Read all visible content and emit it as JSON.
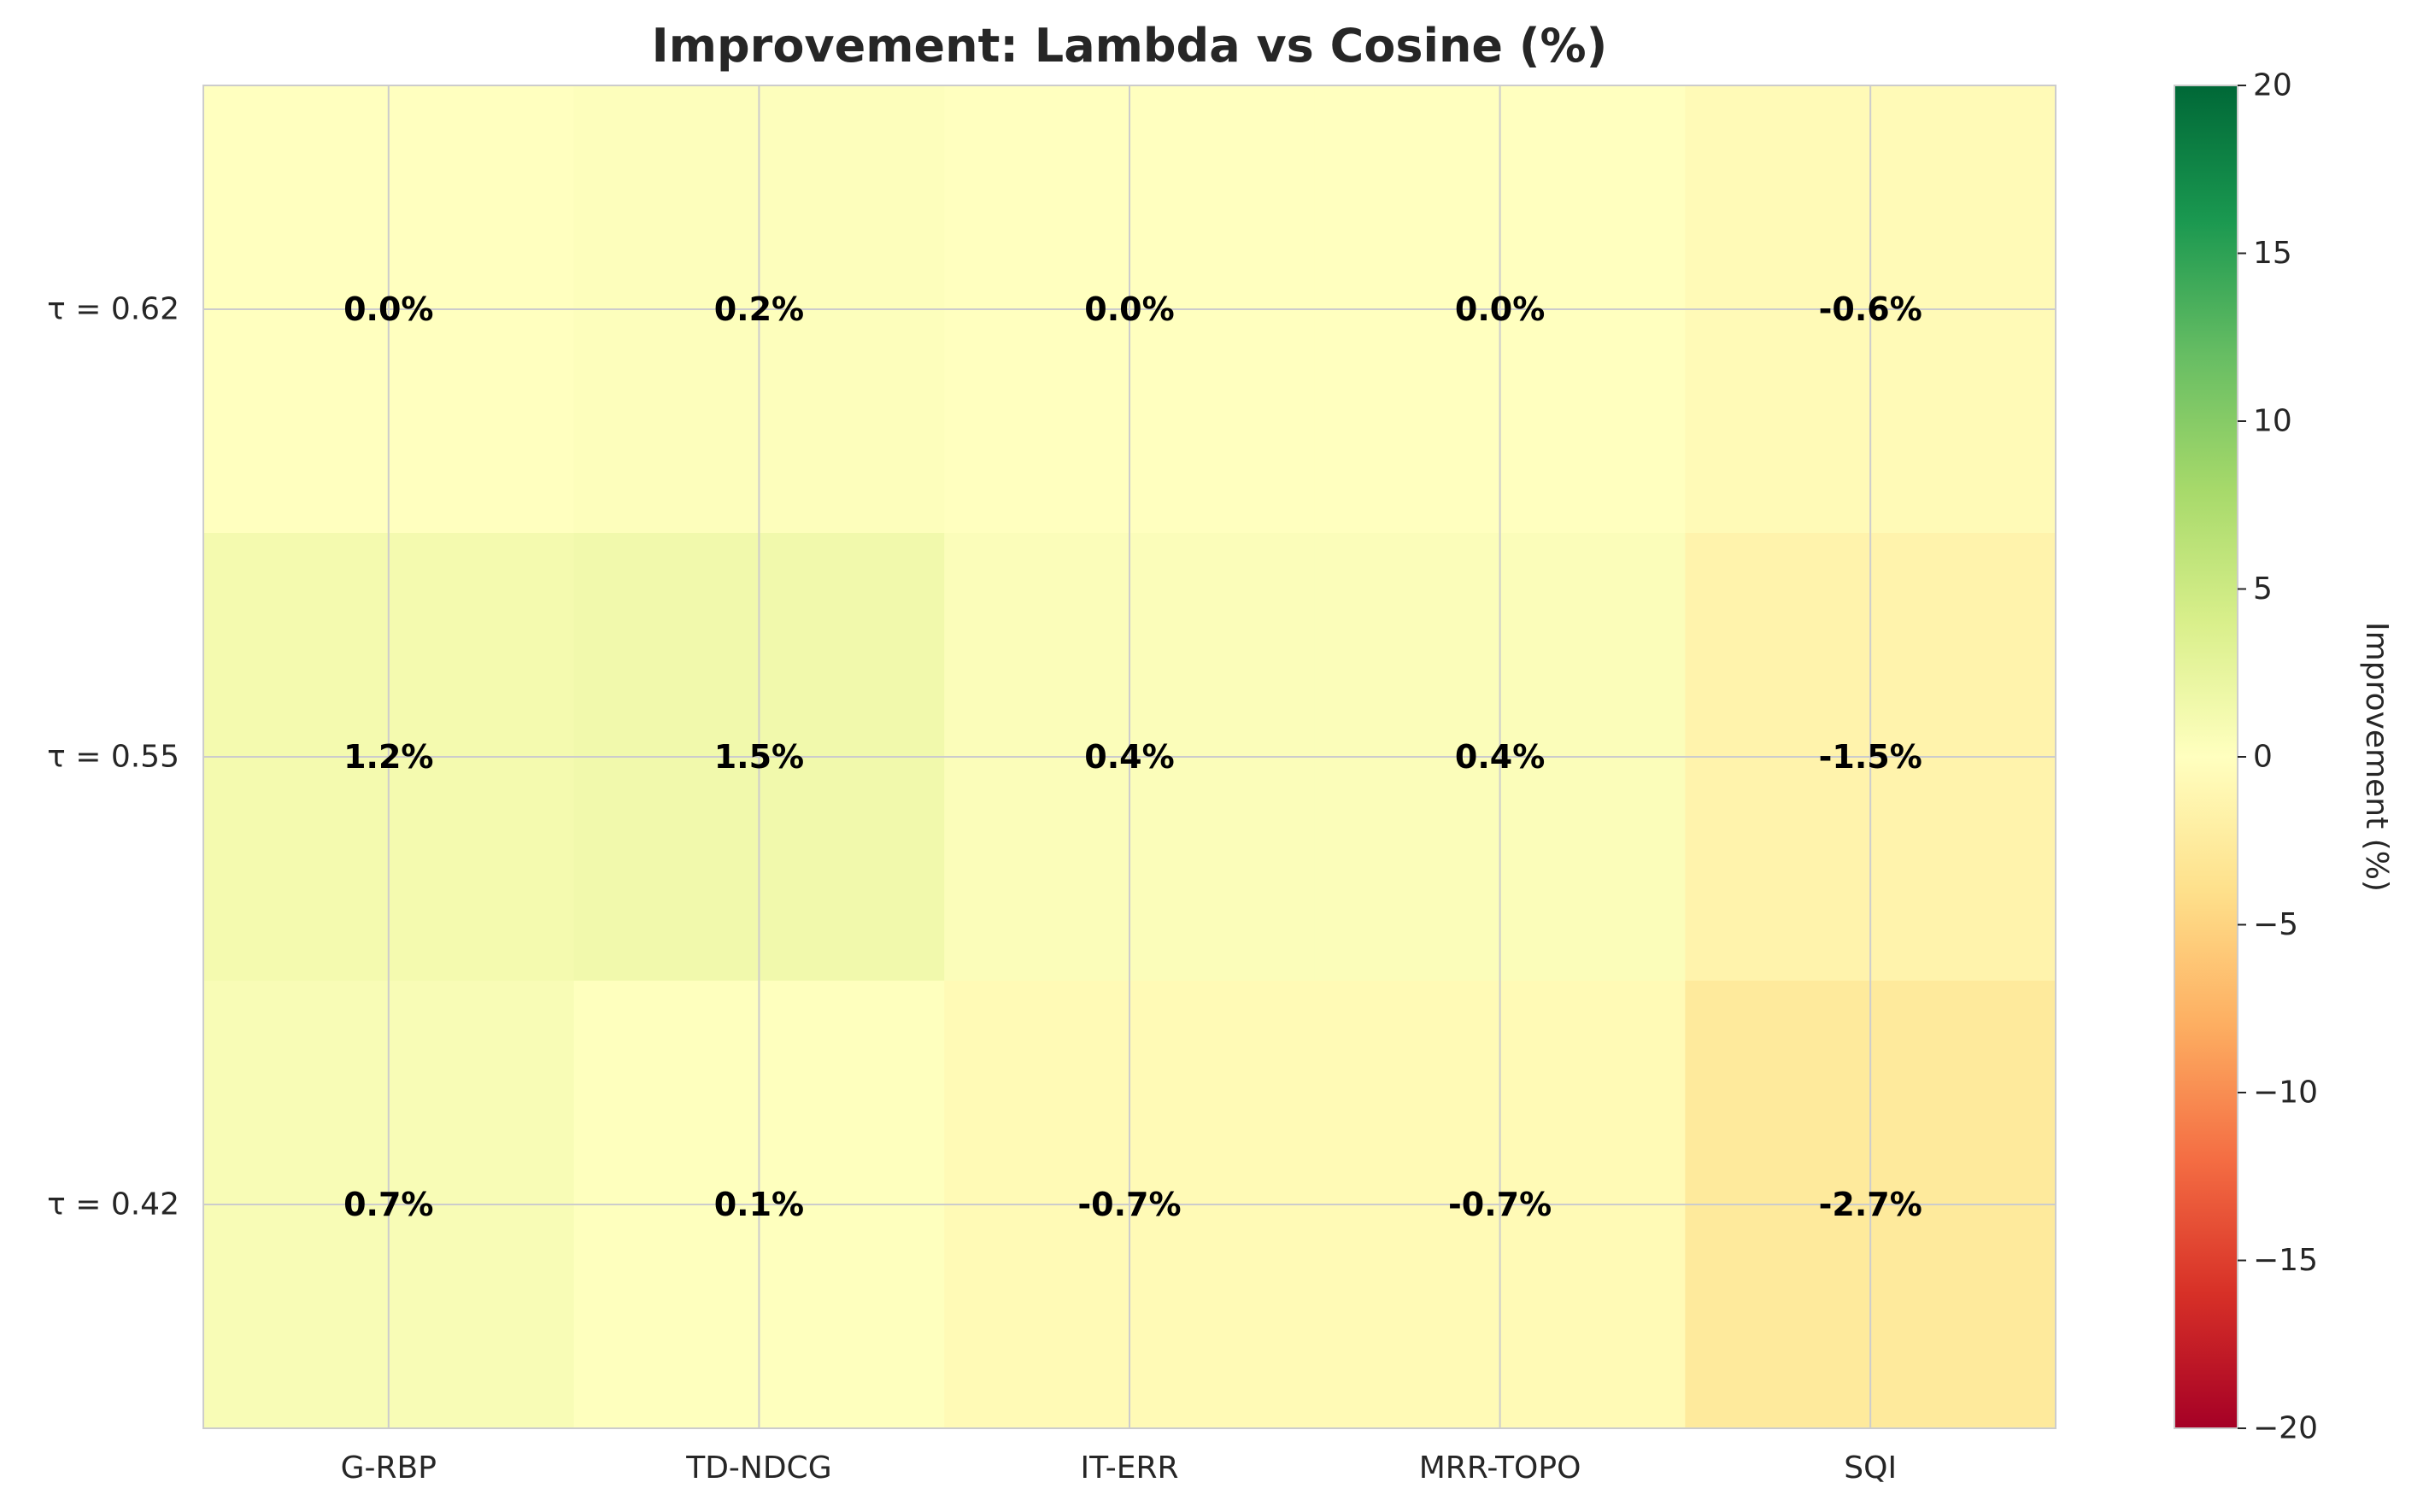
{
  "chart_data": {
    "type": "heatmap",
    "title": "Improvement: Lambda vs Cosine (%)",
    "columns": [
      "G-RBP",
      "TD-NDCG",
      "IT-ERR",
      "MRR-TOPO",
      "SQI"
    ],
    "rows": [
      "τ = 0.62",
      "τ = 0.55",
      "τ = 0.42"
    ],
    "values": [
      [
        0.0,
        0.2,
        0.0,
        0.0,
        -0.6
      ],
      [
        1.2,
        1.5,
        0.4,
        0.4,
        -1.5
      ],
      [
        0.7,
        0.1,
        -0.7,
        -0.7,
        -2.7
      ]
    ],
    "cell_labels": [
      [
        "0.0%",
        "0.2%",
        "0.0%",
        "0.0%",
        "-0.6%"
      ],
      [
        "1.2%",
        "1.5%",
        "0.4%",
        "0.4%",
        "-1.5%"
      ],
      [
        "0.7%",
        "0.1%",
        "-0.7%",
        "-0.7%",
        "-2.7%"
      ]
    ],
    "colormap": "RdYlGn",
    "vmin": -20,
    "vmax": 20,
    "colorbar": {
      "label": "Improvement (%)",
      "ticks": [
        20,
        15,
        10,
        5,
        0,
        -5,
        -10,
        -15,
        -20
      ],
      "tick_labels": [
        "20",
        "15",
        "10",
        "5",
        "0",
        "−5",
        "−10",
        "−15",
        "−20"
      ]
    },
    "grid": true
  }
}
